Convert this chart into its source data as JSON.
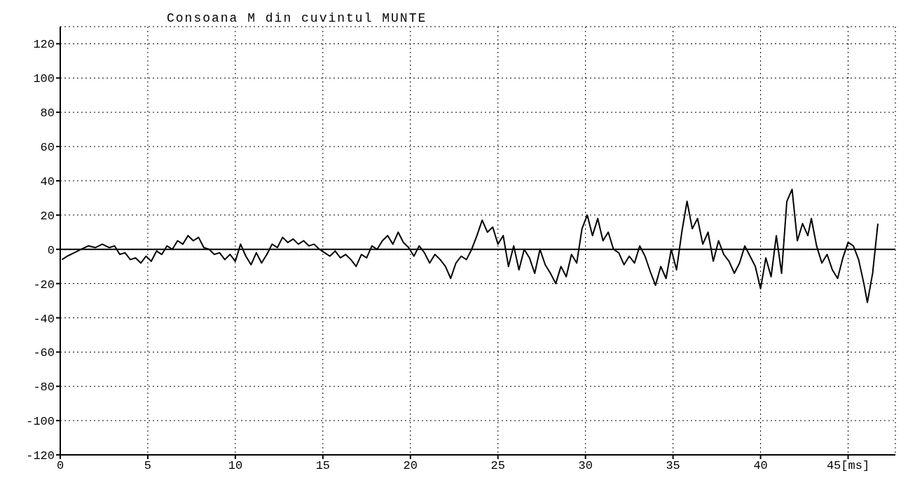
{
  "chart_data": {
    "type": "line",
    "title": "Consoana M din cuvintul MUNTE",
    "x": [
      0.1,
      0.4,
      0.8,
      1.2,
      1.6,
      2.0,
      2.4,
      2.8,
      3.1,
      3.4,
      3.7,
      4.0,
      4.3,
      4.6,
      4.9,
      5.2,
      5.5,
      5.8,
      6.1,
      6.4,
      6.7,
      7.0,
      7.3,
      7.6,
      7.9,
      8.2,
      8.5,
      8.8,
      9.1,
      9.4,
      9.7,
      10.0,
      10.3,
      10.6,
      10.9,
      11.2,
      11.5,
      11.8,
      12.1,
      12.4,
      12.7,
      13.0,
      13.3,
      13.6,
      13.9,
      14.2,
      14.5,
      14.8,
      15.1,
      15.4,
      15.7,
      16.0,
      16.3,
      16.6,
      16.9,
      17.2,
      17.5,
      17.8,
      18.1,
      18.4,
      18.7,
      19.0,
      19.3,
      19.6,
      19.9,
      20.2,
      20.5,
      20.8,
      21.1,
      21.4,
      21.7,
      22.0,
      22.3,
      22.6,
      22.9,
      23.2,
      23.5,
      23.8,
      24.1,
      24.4,
      24.7,
      25.0,
      25.3,
      25.6,
      25.9,
      26.2,
      26.5,
      26.8,
      27.1,
      27.4,
      27.7,
      28.0,
      28.3,
      28.6,
      28.9,
      29.2,
      29.5,
      29.8,
      30.1,
      30.4,
      30.7,
      31.0,
      31.3,
      31.6,
      31.9,
      32.2,
      32.5,
      32.8,
      33.1,
      33.4,
      33.7,
      34.0,
      34.3,
      34.6,
      34.9,
      35.2,
      35.5,
      35.8,
      36.1,
      36.4,
      36.7,
      37.0,
      37.3,
      37.6,
      37.9,
      38.2,
      38.5,
      38.8,
      39.1,
      39.4,
      39.7,
      40.0,
      40.3,
      40.6,
      40.9,
      41.2,
      41.5,
      41.8,
      42.1,
      42.4,
      42.7,
      42.9,
      43.2,
      43.5,
      43.8,
      44.1,
      44.4,
      44.7,
      45.0,
      45.3,
      45.6,
      45.9,
      46.1,
      46.4,
      46.7
    ],
    "series": [
      {
        "color": "#000000",
        "values": [
          -6,
          -4,
          -2,
          0,
          2,
          1,
          3,
          1,
          2,
          -3,
          -2,
          -6,
          -5,
          -8,
          -4,
          -7,
          -1,
          -3,
          2,
          0,
          5,
          3,
          8,
          5,
          7,
          1,
          0,
          -3,
          -2,
          -6,
          -3,
          -7,
          3,
          -4,
          -9,
          -2,
          -8,
          -3,
          3,
          1,
          7,
          4,
          6,
          3,
          5,
          2,
          3,
          0,
          -2,
          -4,
          -1,
          -5,
          -3,
          -6,
          -10,
          -3,
          -5,
          2,
          0,
          5,
          8,
          3,
          10,
          4,
          1,
          -4,
          2,
          -2,
          -8,
          -3,
          -6,
          -10,
          -17,
          -8,
          -4,
          -6,
          0,
          8,
          17,
          10,
          13,
          3,
          8,
          -10,
          2,
          -12,
          0,
          -5,
          -14,
          0,
          -9,
          -14,
          -20,
          -10,
          -16,
          -3,
          -8,
          12,
          20,
          8,
          18,
          5,
          10,
          0,
          -2,
          -9,
          -4,
          -8,
          2,
          -4,
          -13,
          -21,
          -10,
          -17,
          0,
          -12,
          10,
          28,
          12,
          18,
          3,
          10,
          -7,
          5,
          -3,
          -7,
          -14,
          -8,
          2,
          -4,
          -10,
          -23,
          -5,
          -16,
          8,
          -14,
          28,
          35,
          5,
          15,
          8,
          18,
          2,
          -8,
          -3,
          -12,
          -17,
          -5,
          4,
          2,
          -6,
          -20,
          -31,
          -14,
          15
        ]
      }
    ],
    "xlim": [
      0,
      47.7
    ],
    "ylim": [
      -120,
      130
    ],
    "xticks": [
      0,
      5,
      10,
      15,
      20,
      25,
      30,
      35,
      40,
      {
        "value": 45,
        "label": "45[ms]"
      }
    ],
    "yticks": [
      -120,
      -100,
      -80,
      -60,
      -40,
      -20,
      0,
      20,
      40,
      60,
      80,
      100,
      120
    ],
    "grid": true,
    "marker": "none",
    "line_style": "solid",
    "ref_lines": [
      {
        "axis": "y",
        "value": 0,
        "color": "#000000"
      }
    ]
  }
}
